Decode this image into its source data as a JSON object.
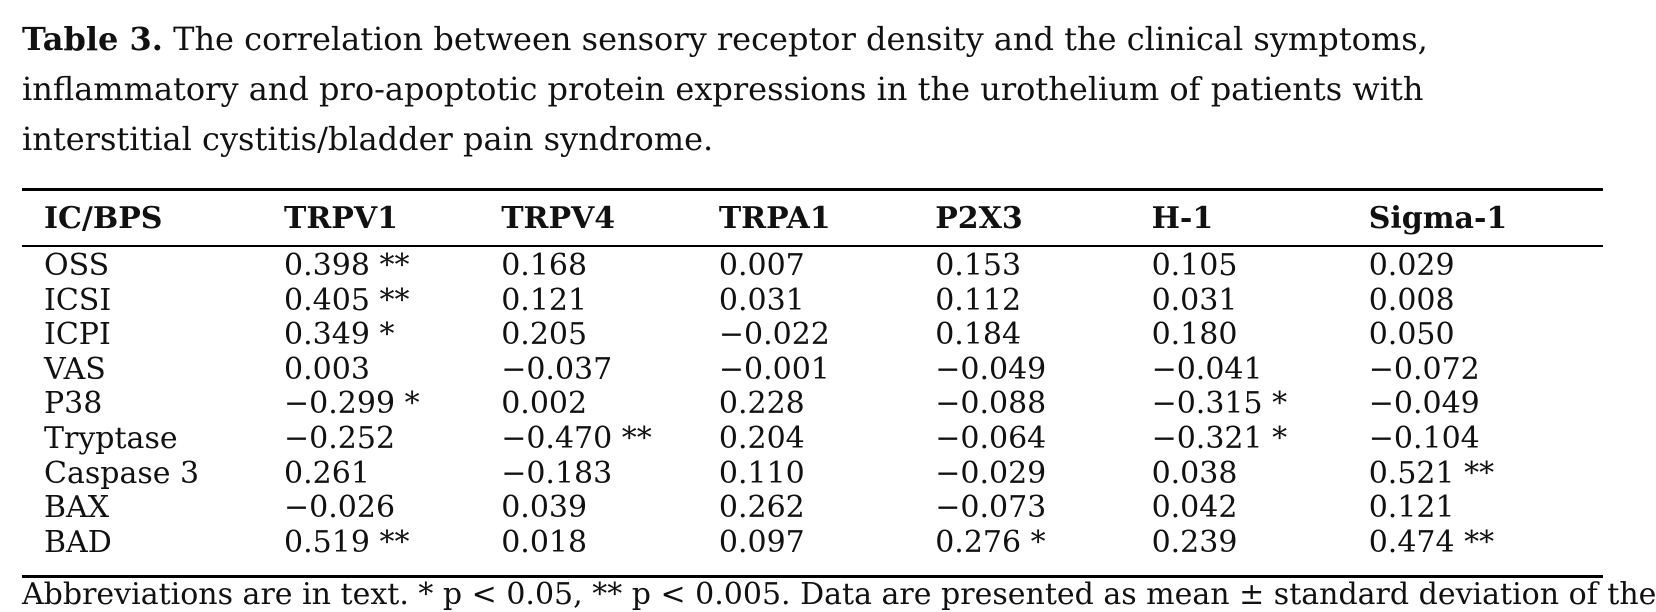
{
  "caption": {
    "label": "Table 3.",
    "text": "The correlation between sensory receptor density and the clinical symptoms, inflammatory and pro-apoptotic protein expressions in the urothelium of patients with interstitial cystitis/bladder pain syndrome."
  },
  "table": {
    "headers": [
      "IC/BPS",
      "TRPV1",
      "TRPV4",
      "TRPA1",
      "P2X3",
      "H-1",
      "Sigma-1"
    ],
    "rows": [
      [
        "OSS",
        "0.398 **",
        "0.168",
        "0.007",
        "0.153",
        "0.105",
        "0.029"
      ],
      [
        "ICSI",
        "0.405 **",
        "0.121",
        "0.031",
        "0.112",
        "0.031",
        "0.008"
      ],
      [
        "ICPI",
        "0.349 *",
        "0.205",
        "−0.022",
        "0.184",
        "0.180",
        "0.050"
      ],
      [
        "VAS",
        "0.003",
        "−0.037",
        "−0.001",
        "−0.049",
        "−0.041",
        "−0.072"
      ],
      [
        "P38",
        "−0.299 *",
        "0.002",
        "0.228",
        "−0.088",
        "−0.315 *",
        "−0.049"
      ],
      [
        "Tryptase",
        "−0.252",
        "−0.470 **",
        "0.204",
        "−0.064",
        "−0.321 *",
        "−0.104"
      ],
      [
        "Caspase 3",
        "0.261",
        "−0.183",
        "0.110",
        "−0.029",
        "0.038",
        "0.521 **"
      ],
      [
        "BAX",
        "−0.026",
        "0.039",
        "0.262",
        "−0.073",
        "0.042",
        "0.121"
      ],
      [
        "BAD",
        "0.519 **",
        "0.018",
        "0.097",
        "0.276 *",
        "0.239",
        "0.474 **"
      ]
    ]
  },
  "footnote": "Abbreviations are in text. * p < 0.05, ** p < 0.005. Data are presented as mean ± standard deviation of the"
}
